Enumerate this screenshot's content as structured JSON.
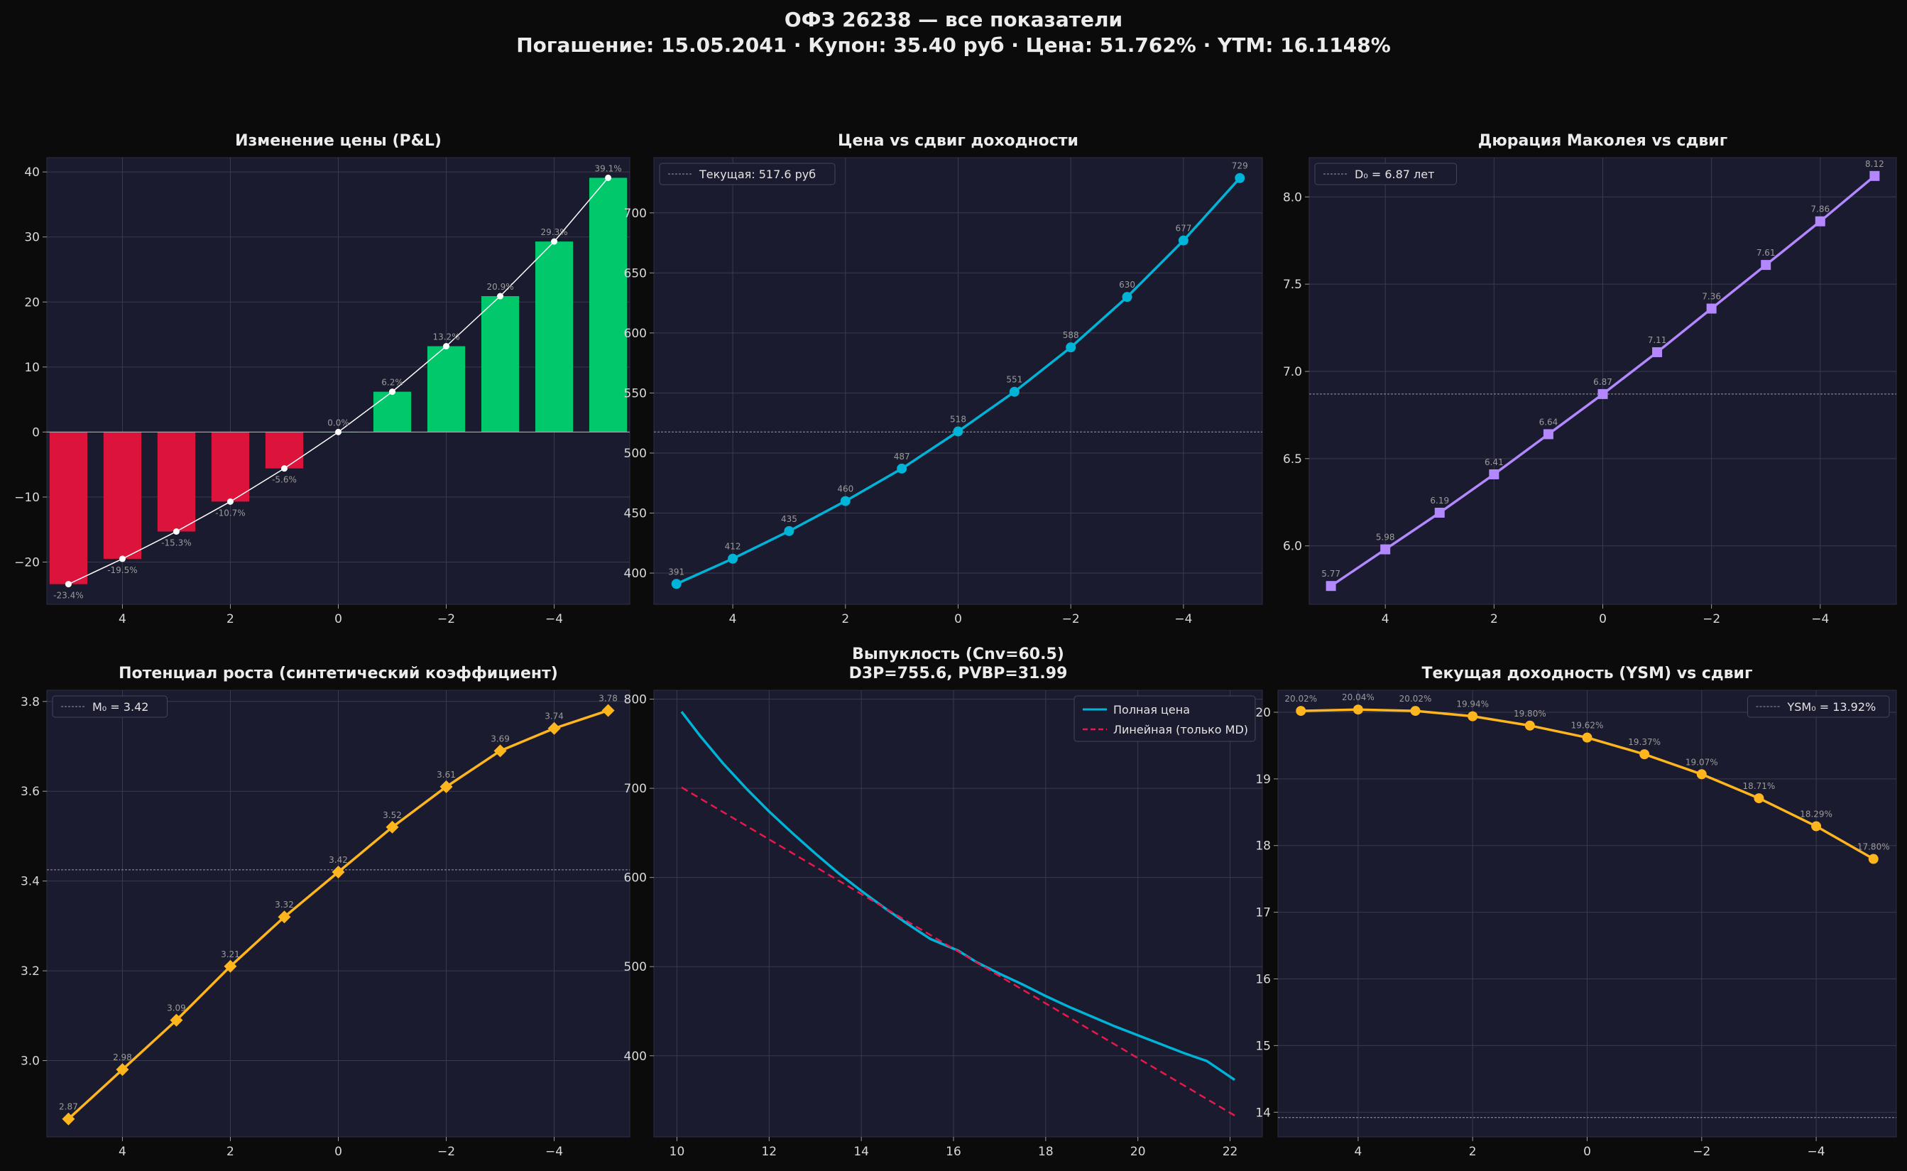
{
  "title": {
    "line1": "ОФЗ 26238 — все показатели",
    "line2": "Погашение: 15.05.2041 · Купон: 35.40 руб · Цена: 51.762% · YTM: 16.1148%"
  },
  "colors": {
    "background": "#0b0b0b",
    "panel": "#1a1b2e",
    "grid": "#3a3b4e",
    "negative_bar": "#dc143c",
    "positive_bar": "#00c86b",
    "blue": "#00b4d8",
    "purple": "#b388ff",
    "orange": "#ffb61e",
    "red_dashed": "#e8194a",
    "data_label": "#9a9a9a"
  },
  "chart_data": [
    {
      "id": "pnl",
      "type": "bar",
      "title": "Изменение цены (P&L)",
      "x": [
        5,
        4,
        3,
        2,
        1,
        0,
        -1,
        -2,
        -3,
        -4,
        -5
      ],
      "values": [
        -23.4,
        -19.5,
        -15.3,
        -10.7,
        -5.6,
        0.0,
        6.2,
        13.2,
        20.9,
        29.3,
        39.1
      ],
      "labels": [
        "-23.4%",
        "-19.5%",
        "-15.3%",
        "-10.7%",
        "-5.6%",
        "0.0%",
        "6.2%",
        "13.2%",
        "20.9%",
        "29.3%",
        "39.1%"
      ],
      "overlay_line": true,
      "xlim": [
        5.4,
        -5.4
      ],
      "ylim": [
        -26.5,
        42.2
      ],
      "xticks": [
        4,
        2,
        0,
        -2,
        -4
      ],
      "xticklabels": [
        "4",
        "2",
        "0",
        "−2",
        "−4"
      ],
      "yticks": [
        -20,
        -10,
        0,
        10,
        20,
        30,
        40
      ],
      "yticklabels": [
        "−20",
        "−10",
        "0",
        "10",
        "20",
        "30",
        "40"
      ],
      "grid": true
    },
    {
      "id": "price",
      "type": "line",
      "title": "Цена vs сдвиг доходности",
      "x": [
        5,
        4,
        3,
        2,
        1,
        0,
        -1,
        -2,
        -3,
        -4,
        -5
      ],
      "values": [
        391,
        412,
        435,
        460,
        487,
        518,
        551,
        588,
        630,
        677,
        729
      ],
      "labels": [
        "391",
        "412",
        "435",
        "460",
        "487",
        "518",
        "551",
        "588",
        "630",
        "677",
        "729"
      ],
      "reference": 517.6,
      "legend": [
        "Текущая: 517.6 руб"
      ],
      "legend_position": "top-left",
      "xlim": [
        5.4,
        -5.4
      ],
      "ylim": [
        374,
        746
      ],
      "xticks": [
        4,
        2,
        0,
        -2,
        -4
      ],
      "xticklabels": [
        "4",
        "2",
        "0",
        "−2",
        "−4"
      ],
      "yticks": [
        400,
        450,
        500,
        550,
        600,
        650,
        700
      ],
      "yticklabels": [
        "400",
        "450",
        "500",
        "550",
        "600",
        "650",
        "700"
      ],
      "marker": "circle",
      "grid": true
    },
    {
      "id": "duration",
      "type": "line",
      "title": "Дюрация Маколея vs сдвиг",
      "x": [
        5,
        4,
        3,
        2,
        1,
        0,
        -1,
        -2,
        -3,
        -4,
        -5
      ],
      "values": [
        5.77,
        5.98,
        6.19,
        6.41,
        6.64,
        6.87,
        7.11,
        7.36,
        7.61,
        7.86,
        8.12
      ],
      "labels": [
        "5.77",
        "5.98",
        "6.19",
        "6.41",
        "6.64",
        "6.87",
        "7.11",
        "7.36",
        "7.61",
        "7.86",
        "8.12"
      ],
      "reference": 6.87,
      "legend": [
        "D₀ = 6.87 лет"
      ],
      "legend_position": "top-left",
      "xlim": [
        5.4,
        -5.4
      ],
      "ylim": [
        5.665,
        8.225
      ],
      "xticks": [
        4,
        2,
        0,
        -2,
        -4
      ],
      "xticklabels": [
        "4",
        "2",
        "0",
        "−2",
        "−4"
      ],
      "yticks": [
        6.0,
        6.5,
        7.0,
        7.5,
        8.0
      ],
      "yticklabels": [
        "6.0",
        "6.5",
        "7.0",
        "7.5",
        "8.0"
      ],
      "marker": "square",
      "grid": true
    },
    {
      "id": "growth",
      "type": "line",
      "title": "Потенциал роста (синтетический коэффициент)",
      "x": [
        5,
        4,
        3,
        2,
        1,
        0,
        -1,
        -2,
        -3,
        -4,
        -5
      ],
      "values": [
        2.87,
        2.98,
        3.09,
        3.21,
        3.32,
        3.42,
        3.52,
        3.61,
        3.69,
        3.74,
        3.78
      ],
      "labels": [
        "2.87",
        "2.98",
        "3.09",
        "3.21",
        "3.32",
        "3.42",
        "3.52",
        "3.61",
        "3.69",
        "3.74",
        "3.78"
      ],
      "reference": 3.425,
      "legend": [
        "M₀ = 3.42"
      ],
      "legend_position": "top-left",
      "xlim": [
        5.4,
        -5.4
      ],
      "ylim": [
        2.83,
        3.825
      ],
      "xticks": [
        4,
        2,
        0,
        -2,
        -4
      ],
      "xticklabels": [
        "4",
        "2",
        "0",
        "−2",
        "−4"
      ],
      "yticks": [
        3.0,
        3.2,
        3.4,
        3.6,
        3.8
      ],
      "yticklabels": [
        "3.0",
        "3.2",
        "3.4",
        "3.6",
        "3.8"
      ],
      "marker": "diamond",
      "grid": true
    },
    {
      "id": "convexity",
      "type": "line",
      "title": "Выпуклость (Cnv=60.5)",
      "subtitle": "D3P=755.6, PVBP=31.99",
      "series": [
        {
          "name": "Полная цена",
          "x": [
            10.1,
            10.5,
            11,
            11.5,
            12,
            12.5,
            13,
            13.5,
            14,
            14.5,
            15,
            15.5,
            16.1,
            16.5,
            17,
            17.5,
            18,
            18.5,
            19,
            19.5,
            20,
            20.5,
            21,
            21.5,
            22.1
          ],
          "y": [
            786,
            759,
            728,
            700,
            674,
            650,
            627,
            605,
            585,
            566,
            548,
            531,
            518,
            505,
            492,
            480,
            467,
            455,
            444,
            433,
            423,
            413,
            403,
            394,
            373
          ]
        },
        {
          "name": "Линейная (только MD)",
          "x": [
            10.1,
            22.1
          ],
          "y": [
            701,
            333
          ]
        }
      ],
      "legend_position": "top-right",
      "xlim": [
        9.5,
        22.7
      ],
      "ylim": [
        309,
        810
      ],
      "xticks": [
        10,
        12,
        14,
        16,
        18,
        20,
        22
      ],
      "xticklabels": [
        "10",
        "12",
        "14",
        "16",
        "18",
        "20",
        "22"
      ],
      "yticks": [
        400,
        500,
        600,
        700,
        800
      ],
      "yticklabels": [
        "400",
        "500",
        "600",
        "700",
        "800"
      ],
      "grid": true
    },
    {
      "id": "ysm",
      "type": "line",
      "title": "Текущая доходность (YSM) vs сдвиг",
      "x": [
        5,
        4,
        3,
        2,
        1,
        0,
        -1,
        -2,
        -3,
        -4,
        -5
      ],
      "values": [
        20.02,
        20.04,
        20.02,
        19.94,
        19.8,
        19.62,
        19.37,
        19.07,
        18.71,
        18.29,
        17.8
      ],
      "labels": [
        "20.02%",
        "20.04%",
        "20.02%",
        "19.94%",
        "19.80%",
        "19.62%",
        "19.37%",
        "19.07%",
        "18.71%",
        "18.29%",
        "17.80%"
      ],
      "reference": 13.92,
      "legend": [
        "YSM₀ = 13.92%"
      ],
      "legend_position": "top-right",
      "xlim": [
        5.4,
        -5.4
      ],
      "ylim": [
        13.63,
        20.33
      ],
      "xticks": [
        4,
        2,
        0,
        -2,
        -4
      ],
      "xticklabels": [
        "4",
        "2",
        "0",
        "−2",
        "−4"
      ],
      "yticks": [
        14,
        15,
        16,
        17,
        18,
        19,
        20
      ],
      "yticklabels": [
        "14",
        "15",
        "16",
        "17",
        "18",
        "19",
        "20"
      ],
      "marker": "circle",
      "grid": true
    }
  ]
}
